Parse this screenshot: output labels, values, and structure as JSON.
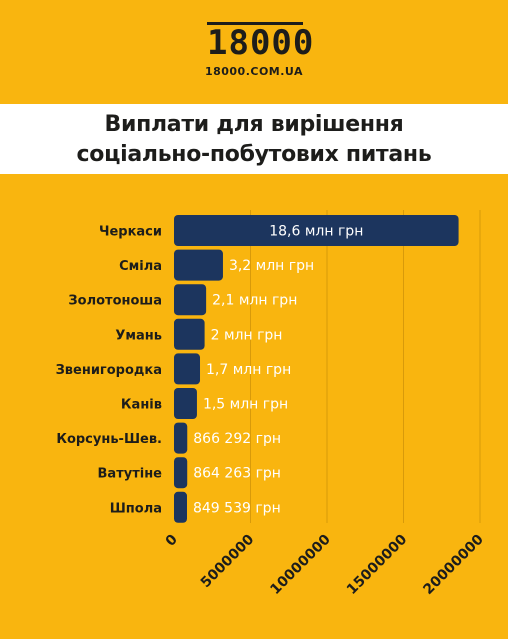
{
  "logo": {
    "digits": "18000",
    "domain": "18000.COM.UA"
  },
  "title": {
    "line1": "Виплати для вирішення",
    "line2": "соціально-побутових питань"
  },
  "colors": {
    "background": "#F9B50F",
    "bar": "#1C355E",
    "title_band": "#FFFFFF",
    "text": "#1D1D1B"
  },
  "chart_data": {
    "type": "bar",
    "orientation": "horizontal",
    "title": "Виплати для вирішення соціально-побутових питань",
    "categories": [
      "Черкаси",
      "Сміла",
      "Золотоноша",
      "Умань",
      "Звенигородка",
      "Канів",
      "Корсунь-Шев.",
      "Ватутіне",
      "Шпола"
    ],
    "values": [
      18600000,
      3200000,
      2100000,
      2000000,
      1700000,
      1500000,
      866292,
      864263,
      849539
    ],
    "data_labels": [
      "18,6 млн грн",
      "3,2 млн грн",
      "2,1 млн грн",
      "2 млн грн",
      "1,7 млн грн",
      "1,5 млн грн",
      "866 292 грн",
      "864 263 грн",
      "849 539 грн"
    ],
    "xlim": [
      0,
      20000000
    ],
    "xticks": [
      0,
      5000000,
      10000000,
      15000000,
      20000000
    ],
    "xtick_labels": [
      "0",
      "5000000",
      "10000000",
      "15000000",
      "20000000"
    ],
    "grid": true,
    "legend": "none"
  }
}
